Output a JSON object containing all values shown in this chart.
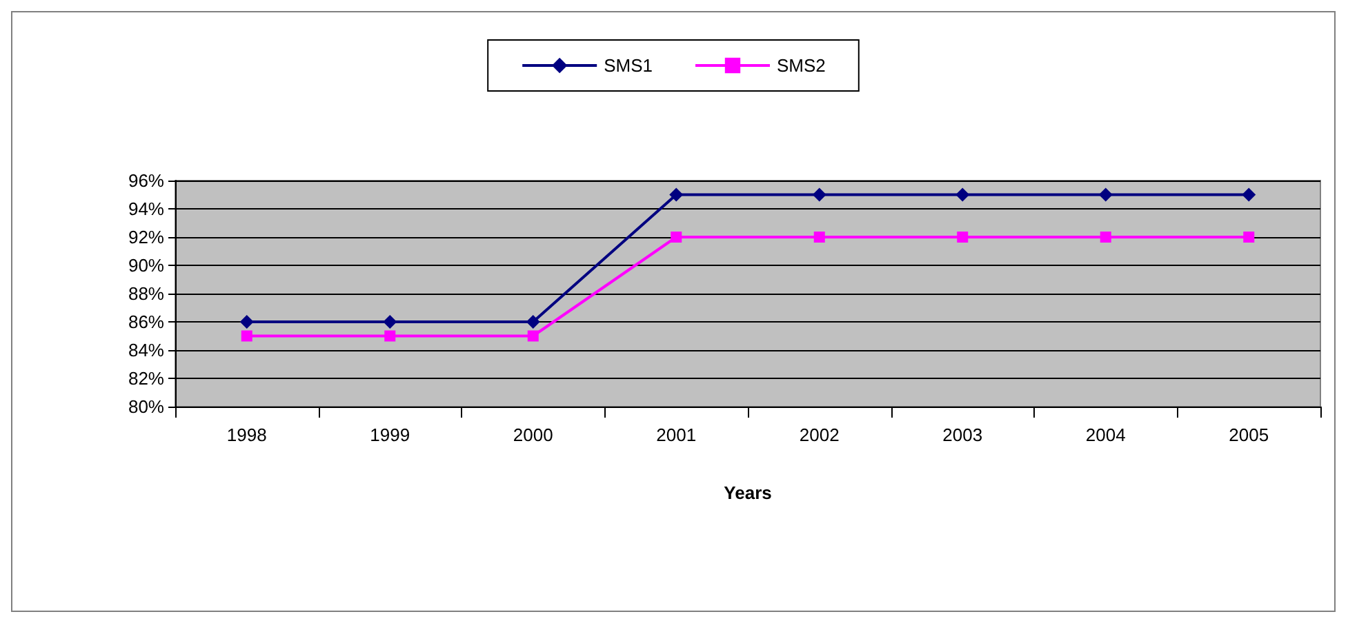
{
  "chart_data": {
    "type": "line",
    "xlabel": "Years",
    "categories": [
      "1998",
      "1999",
      "2000",
      "2001",
      "2002",
      "2003",
      "2004",
      "2005"
    ],
    "series": [
      {
        "name": "SMS1",
        "color": "#000080",
        "marker": "diamond",
        "values": [
          86,
          86,
          86,
          95,
          95,
          95,
          95,
          95
        ]
      },
      {
        "name": "SMS2",
        "color": "#ff00ff",
        "marker": "square",
        "values": [
          85,
          85,
          85,
          92,
          92,
          92,
          92,
          92
        ]
      }
    ],
    "ylim": [
      80,
      96
    ],
    "yticks": [
      {
        "value": 80,
        "label": "80%"
      },
      {
        "value": 82,
        "label": "82%"
      },
      {
        "value": 84,
        "label": "84%"
      },
      {
        "value": 86,
        "label": "86%"
      },
      {
        "value": 88,
        "label": "88%"
      },
      {
        "value": 90,
        "label": "90%"
      },
      {
        "value": 92,
        "label": "92%"
      },
      {
        "value": 94,
        "label": "94%"
      },
      {
        "value": 96,
        "label": "96%"
      }
    ],
    "grid": "y",
    "legend": "top"
  }
}
